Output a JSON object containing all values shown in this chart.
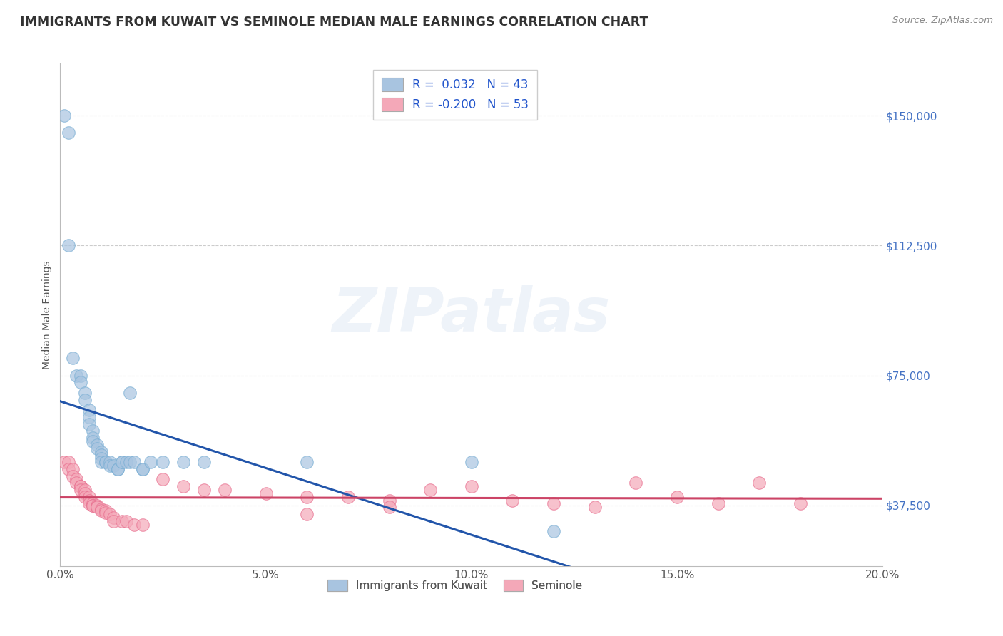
{
  "title": "IMMIGRANTS FROM KUWAIT VS SEMINOLE MEDIAN MALE EARNINGS CORRELATION CHART",
  "source": "Source: ZipAtlas.com",
  "ylabel": "Median Male Earnings",
  "xlim": [
    0.0,
    0.2
  ],
  "ylim": [
    20000,
    165000
  ],
  "yticks": [
    37500,
    75000,
    112500,
    150000
  ],
  "ytick_labels": [
    "$37,500",
    "$75,000",
    "$112,500",
    "$150,000"
  ],
  "xticks": [
    0.0,
    0.05,
    0.1,
    0.15,
    0.2
  ],
  "xtick_labels": [
    "0.0%",
    "5.0%",
    "10.0%",
    "15.0%",
    "20.0%"
  ],
  "legend_blue_r": " 0.032",
  "legend_blue_n": "43",
  "legend_pink_r": "-0.200",
  "legend_pink_n": "53",
  "blue_color": "#a8c4e0",
  "blue_edge_color": "#7aafd4",
  "blue_line_color": "#2255aa",
  "pink_color": "#f4a8b8",
  "pink_edge_color": "#e87090",
  "pink_line_color": "#cc4466",
  "blue_scatter_x": [
    0.001,
    0.002,
    0.002,
    0.003,
    0.004,
    0.005,
    0.005,
    0.006,
    0.006,
    0.007,
    0.007,
    0.007,
    0.008,
    0.008,
    0.008,
    0.009,
    0.009,
    0.01,
    0.01,
    0.01,
    0.01,
    0.011,
    0.011,
    0.012,
    0.012,
    0.013,
    0.014,
    0.014,
    0.015,
    0.015,
    0.016,
    0.017,
    0.017,
    0.018,
    0.02,
    0.02,
    0.022,
    0.025,
    0.03,
    0.035,
    0.06,
    0.1,
    0.12
  ],
  "blue_scatter_y": [
    150000,
    145000,
    112500,
    80000,
    75000,
    75000,
    73000,
    70000,
    68000,
    65000,
    63000,
    61000,
    59000,
    57000,
    56000,
    55000,
    54000,
    53000,
    52000,
    51000,
    50000,
    50000,
    50000,
    50000,
    49000,
    49000,
    48000,
    48000,
    50000,
    50000,
    50000,
    50000,
    70000,
    50000,
    48000,
    48000,
    50000,
    50000,
    50000,
    50000,
    50000,
    50000,
    30000
  ],
  "pink_scatter_x": [
    0.001,
    0.002,
    0.002,
    0.003,
    0.003,
    0.004,
    0.004,
    0.005,
    0.005,
    0.005,
    0.006,
    0.006,
    0.006,
    0.007,
    0.007,
    0.007,
    0.008,
    0.008,
    0.008,
    0.009,
    0.009,
    0.009,
    0.01,
    0.01,
    0.011,
    0.011,
    0.012,
    0.013,
    0.013,
    0.015,
    0.016,
    0.018,
    0.02,
    0.025,
    0.03,
    0.035,
    0.04,
    0.05,
    0.06,
    0.07,
    0.08,
    0.09,
    0.1,
    0.11,
    0.12,
    0.13,
    0.14,
    0.15,
    0.16,
    0.17,
    0.18,
    0.06,
    0.08
  ],
  "pink_scatter_y": [
    50000,
    50000,
    48000,
    48000,
    46000,
    45000,
    44000,
    43000,
    43000,
    42000,
    42000,
    41000,
    40000,
    40000,
    39000,
    38000,
    38000,
    37500,
    37500,
    37500,
    37000,
    37000,
    36500,
    36000,
    36000,
    35500,
    35000,
    34000,
    33000,
    33000,
    33000,
    32000,
    32000,
    45000,
    43000,
    42000,
    42000,
    41000,
    40000,
    40000,
    39000,
    42000,
    43000,
    39000,
    38000,
    37000,
    44000,
    40000,
    38000,
    44000,
    38000,
    35000,
    37000
  ],
  "watermark": "ZIPatlas",
  "background_color": "#ffffff",
  "grid_color": "#cccccc"
}
